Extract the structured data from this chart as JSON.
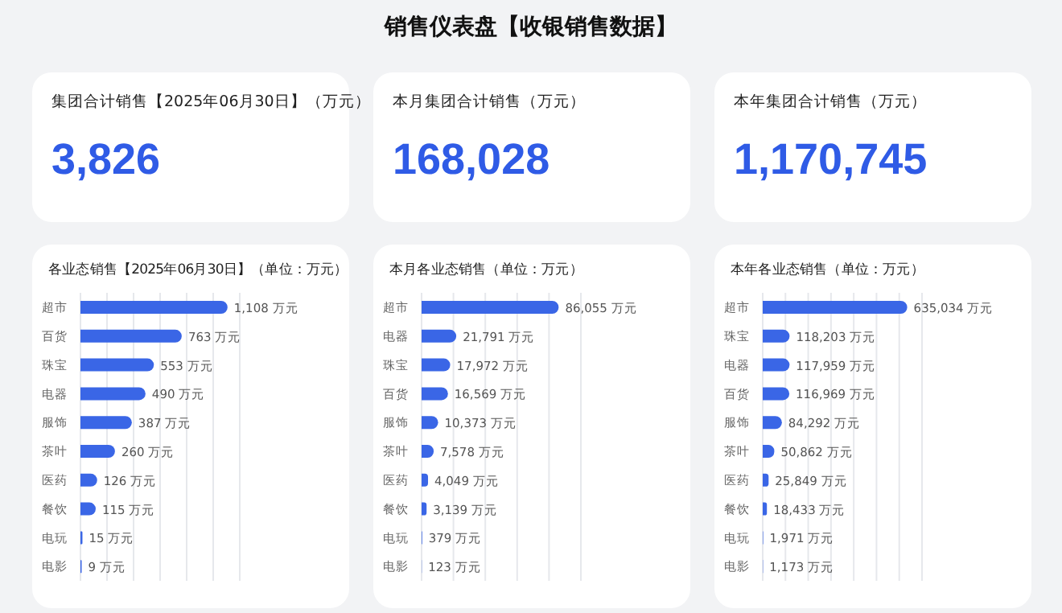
{
  "chart_data": [
    {
      "type": "other",
      "title": "销售仪表盘【收银销售数据】"
    },
    {
      "type": "other",
      "title": "集团合计销售【2025年06月30日】（万元）",
      "annotations": [
        "3,826"
      ]
    },
    {
      "type": "other",
      "title": "本月集团合计销售（万元）",
      "annotations": [
        "168,028"
      ]
    },
    {
      "type": "other",
      "title": "本年集团合计销售（万元）",
      "annotations": [
        "1,170,745"
      ]
    },
    {
      "type": "bar",
      "orientation": "horizontal",
      "title": "各业态销售【2025年06月30日】（单位：万元）",
      "grid": "x",
      "xlim": [
        0,
        1200
      ],
      "xticks": [
        {
          "value": 0,
          "label": null
        },
        {
          "value": 200,
          "label": null
        },
        {
          "value": 400,
          "label": null
        },
        {
          "value": 600,
          "label": null
        },
        {
          "value": 800,
          "label": null
        },
        {
          "value": 1000,
          "label": null
        },
        {
          "value": 1200,
          "label": null
        }
      ],
      "color": "#3a66e6",
      "categories": [
        "超市",
        "百货",
        "珠宝",
        "电器",
        "服饰",
        "茶叶",
        "医药",
        "餐饮",
        "电玩",
        "电影"
      ],
      "values": [
        1108,
        763,
        553,
        490,
        387,
        260,
        126,
        115,
        15,
        9
      ],
      "value_labels": [
        "1,108 万元",
        "763 万元",
        "553 万元",
        "490 万元",
        "387 万元",
        "260 万元",
        "126 万元",
        "115 万元",
        "15 万元",
        "9 万元"
      ]
    },
    {
      "type": "bar",
      "orientation": "horizontal",
      "title": "本月各业态销售（单位：万元）",
      "grid": "x",
      "xlim": [
        0,
        100000
      ],
      "xticks": [
        {
          "value": 0,
          "label": null
        },
        {
          "value": 20000,
          "label": null
        },
        {
          "value": 40000,
          "label": null
        },
        {
          "value": 60000,
          "label": null
        },
        {
          "value": 80000,
          "label": null
        },
        {
          "value": 100000,
          "label": null
        }
      ],
      "color": "#3a66e6",
      "categories": [
        "超市",
        "电器",
        "珠宝",
        "百货",
        "服饰",
        "茶叶",
        "医药",
        "餐饮",
        "电玩",
        "电影"
      ],
      "values": [
        86055,
        21791,
        17972,
        16569,
        10373,
        7578,
        4049,
        3139,
        379,
        123
      ],
      "value_labels": [
        "86,055 万元",
        "21,791 万元",
        "17,972 万元",
        "16,569 万元",
        "10,373 万元",
        "7,578 万元",
        "4,049 万元",
        "3,139 万元",
        "379 万元",
        "123 万元"
      ]
    },
    {
      "type": "bar",
      "orientation": "horizontal",
      "title": "本年各业态销售（单位：万元）",
      "grid": "x",
      "xlim": [
        0,
        700000
      ],
      "xticks": [
        {
          "value": 0,
          "label": null
        },
        {
          "value": 100000,
          "label": null
        },
        {
          "value": 200000,
          "label": null
        },
        {
          "value": 300000,
          "label": null
        },
        {
          "value": 400000,
          "label": null
        },
        {
          "value": 500000,
          "label": null
        },
        {
          "value": 600000,
          "label": null
        },
        {
          "value": 700000,
          "label": null
        }
      ],
      "color": "#3a66e6",
      "categories": [
        "超市",
        "珠宝",
        "电器",
        "百货",
        "服饰",
        "茶叶",
        "医药",
        "餐饮",
        "电玩",
        "电影"
      ],
      "values": [
        635034,
        118203,
        117959,
        116969,
        84292,
        50862,
        25849,
        18433,
        1971,
        1173
      ],
      "value_labels": [
        "635,034 万元",
        "118,203 万元",
        "117,959 万元",
        "116,969 万元",
        "84,292 万元",
        "50,862 万元",
        "25,849 万元",
        "18,433 万元",
        "1,971 万元",
        "1,173 万元"
      ]
    }
  ]
}
